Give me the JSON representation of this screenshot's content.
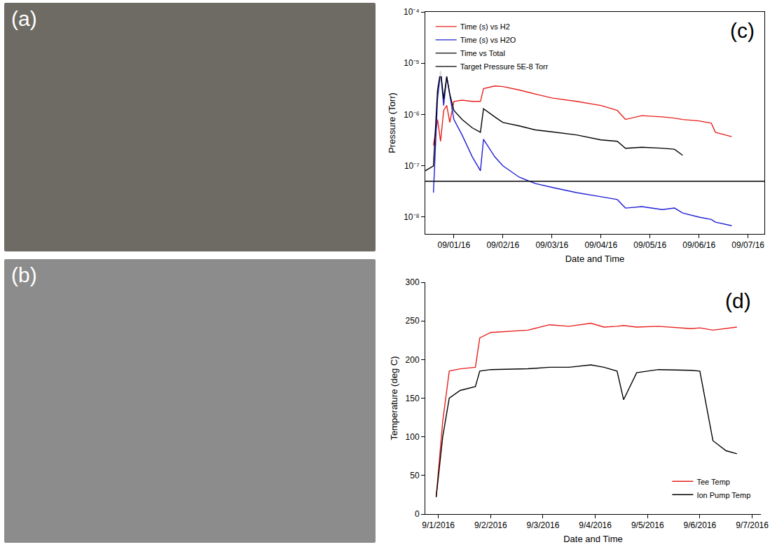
{
  "photos": [
    {
      "label": "(a)"
    },
    {
      "label": "(b)"
    }
  ],
  "chart_data": [
    {
      "type": "line",
      "panel": "(c)",
      "x_label": "Date and Time",
      "y_label": "Pressure (Torr)",
      "log": "y",
      "grid": false,
      "legend": "upper left",
      "xlim": [
        "2016-08-31 10:00",
        "2016-09-07 08:00"
      ],
      "xticks": [
        {
          "value": "2016-09-01",
          "label": "09/01/16"
        },
        {
          "value": "2016-09-02",
          "label": "09/02/16"
        },
        {
          "value": "2016-09-03",
          "label": "09/03/16"
        },
        {
          "value": "2016-09-04",
          "label": "09/04/16"
        },
        {
          "value": "2016-09-05",
          "label": "09/05/16"
        },
        {
          "value": "2016-09-06",
          "label": "09/06/16"
        },
        {
          "value": "2016-09-07",
          "label": "09/07/16"
        }
      ],
      "ylim": [
        4.7e-09,
        0.0001
      ],
      "yticks": [
        {
          "value": 1e-08,
          "label": "10⁻⁸"
        },
        {
          "value": 1e-07,
          "label": "10⁻⁷"
        },
        {
          "value": 1e-06,
          "label": "10⁻⁶"
        },
        {
          "value": 1e-05,
          "label": "10⁻⁵"
        },
        {
          "value": 0.0001,
          "label": "10⁻⁴"
        }
      ],
      "x": [
        "2016-08-31 10:00",
        "2016-08-31 14:00",
        "2016-08-31 16:00",
        "2016-08-31 17:30",
        "2016-08-31 19:00",
        "2016-08-31 20:30",
        "2016-08-31 22:00",
        "2016-09-01 00:00",
        "2016-09-01 04:00",
        "2016-09-01 09:00",
        "2016-09-01 13:00",
        "2016-09-01 14:30",
        "2016-09-01 20:00",
        "2016-09-02 00:00",
        "2016-09-02 08:00",
        "2016-09-02 16:00",
        "2016-09-03 00:00",
        "2016-09-03 12:00",
        "2016-09-04 00:00",
        "2016-09-04 08:00",
        "2016-09-04 12:00",
        "2016-09-04 20:00",
        "2016-09-05 06:00",
        "2016-09-05 12:00",
        "2016-09-05 16:00",
        "2016-09-06 00:00",
        "2016-09-06 06:00",
        "2016-09-06 08:00",
        "2016-09-06 16:00",
        "2016-09-07 08:00"
      ],
      "series": [
        {
          "name": "Time (s) vs H2",
          "color": "#e8201c",
          "line_style": "solid",
          "values": [
            null,
            2.5e-07,
            8e-07,
            3e-07,
            1.2e-06,
            1.5e-06,
            7e-07,
            1.8e-06,
            1.9e-06,
            1.8e-06,
            1.8e-06,
            3.2e-06,
            3.6e-06,
            3.5e-06,
            3e-06,
            2.5e-06,
            2.1e-06,
            1.8e-06,
            1.5e-06,
            1.2e-06,
            8e-07,
            9.5e-07,
            9e-07,
            8.5e-07,
            8e-07,
            7.5e-07,
            6.8e-07,
            4.5e-07,
            3.7e-07,
            null
          ]
        },
        {
          "name": "Time (s) vs H2O",
          "color": "#1f1fd6",
          "line_style": "solid",
          "values": [
            null,
            3e-08,
            2e-06,
            7e-06,
            1.5e-06,
            5.5e-06,
            2.5e-06,
            8e-07,
            4e-07,
            1.5e-07,
            8e-08,
            3.3e-07,
            1.5e-07,
            1e-07,
            6e-08,
            4.5e-08,
            3.8e-08,
            3e-08,
            2.5e-08,
            2.2e-08,
            1.5e-08,
            1.6e-08,
            1.4e-08,
            1.5e-08,
            1.2e-08,
            1e-08,
            9e-09,
            8e-09,
            6.8e-09,
            null
          ]
        },
        {
          "name": "Time vs Total",
          "color": "#000000",
          "line_style": "solid",
          "values": [
            8e-08,
            1e-07,
            3e-06,
            7e-06,
            2e-06,
            5.5e-06,
            2.5e-06,
            1.2e-06,
            8e-07,
            5.5e-07,
            4.5e-07,
            1.3e-06,
            9e-07,
            7e-07,
            6e-07,
            5e-07,
            4.6e-07,
            4e-07,
            3.2e-07,
            3e-07,
            2.2e-07,
            2.3e-07,
            2.2e-07,
            2.1e-07,
            1.6e-07,
            null,
            null,
            null,
            null,
            null
          ]
        },
        {
          "name": "Target Pressure 5E-8 Torr",
          "color": "#000000",
          "line_style": "solid",
          "values": [
            5e-08,
            5e-08,
            5e-08,
            5e-08,
            5e-08,
            5e-08,
            5e-08,
            5e-08,
            5e-08,
            5e-08,
            5e-08,
            5e-08,
            5e-08,
            5e-08,
            5e-08,
            5e-08,
            5e-08,
            5e-08,
            5e-08,
            5e-08,
            5e-08,
            5e-08,
            5e-08,
            5e-08,
            5e-08,
            5e-08,
            5e-08,
            5e-08,
            5e-08,
            5e-08
          ]
        }
      ]
    },
    {
      "type": "line",
      "panel": "(d)",
      "x_label": "Date and Time",
      "y_label": "Temperature (deg C)",
      "grid": false,
      "legend": "lower right",
      "xlim": [
        "2016-08-31 18:00",
        "2016-09-07 04:00"
      ],
      "xticks": [
        {
          "value": "2016-09-01",
          "label": "9/1/2016"
        },
        {
          "value": "2016-09-02",
          "label": "9/2/2016"
        },
        {
          "value": "2016-09-03",
          "label": "9/3/2016"
        },
        {
          "value": "2016-09-04",
          "label": "9/4/2016"
        },
        {
          "value": "2016-09-05",
          "label": "9/5/2016"
        },
        {
          "value": "2016-09-06",
          "label": "9/6/2016"
        },
        {
          "value": "2016-09-07",
          "label": "9/7/2016"
        }
      ],
      "ylim": [
        0,
        300
      ],
      "yticks": [
        0,
        50,
        100,
        150,
        200,
        250,
        300
      ],
      "x": [
        "2016-08-31 23:00",
        "2016-09-01 02:00",
        "2016-09-01 05:00",
        "2016-09-01 10:00",
        "2016-09-01 17:00",
        "2016-09-01 19:00",
        "2016-09-02 00:00",
        "2016-09-02 17:00",
        "2016-09-03 03:00",
        "2016-09-03 12:00",
        "2016-09-03 22:00",
        "2016-09-04 04:00",
        "2016-09-04 10:00",
        "2016-09-04 13:00",
        "2016-09-04 19:00",
        "2016-09-05 05:00",
        "2016-09-05 20:00",
        "2016-09-06 00:00",
        "2016-09-06 06:00",
        "2016-09-06 12:00",
        "2016-09-06 17:00"
      ],
      "series": [
        {
          "name": "Tee Temp",
          "color": "#e8201c",
          "line_style": "solid",
          "values": [
            22,
            120,
            185,
            188,
            190,
            228,
            235,
            238,
            245,
            243,
            247,
            242,
            243,
            244,
            242,
            243,
            240,
            241,
            238,
            240,
            242
          ]
        },
        {
          "name": "Ion Pump Temp",
          "color": "#000000",
          "line_style": "solid",
          "values": [
            22,
            100,
            150,
            160,
            165,
            185,
            187,
            188,
            190,
            190,
            193,
            190,
            185,
            148,
            183,
            187,
            186,
            185,
            95,
            82,
            78
          ]
        }
      ]
    }
  ]
}
